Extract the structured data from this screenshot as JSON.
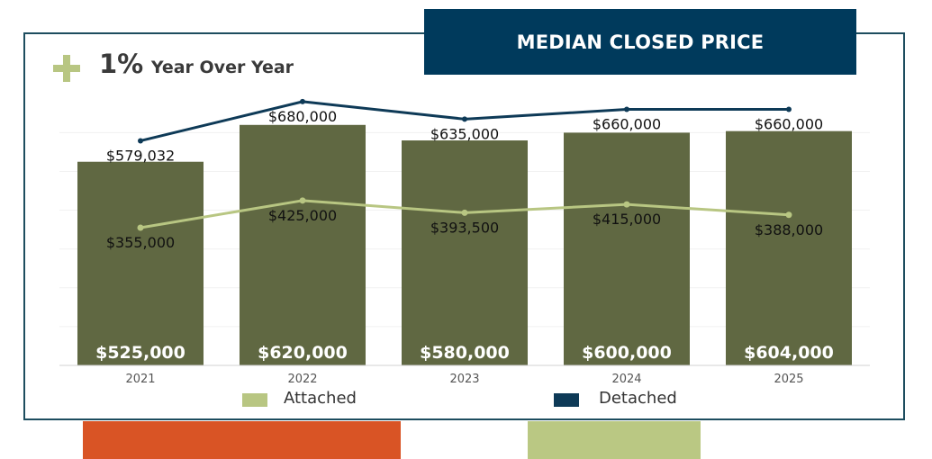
{
  "header": {
    "title": "MEDIAN CLOSED PRICE",
    "change_value": "1%",
    "change_label": "Year Over Year"
  },
  "colors": {
    "bar": "#606842",
    "attached": "#b8c682",
    "detached": "#0e3a57",
    "banner": "#003a5c",
    "accent_orange": "#d95425",
    "accent_green": "#bac883"
  },
  "icons": {
    "change": "plus-icon"
  },
  "chart_data": {
    "type": "bar",
    "categories": [
      "2021",
      "2022",
      "2023",
      "2024",
      "2025"
    ],
    "values": [
      525000,
      620000,
      580000,
      600000,
      604000
    ],
    "value_labels": [
      "$525,000",
      "$620,000",
      "$580,000",
      "$600,000",
      "$604,000"
    ],
    "ylim": [
      0,
      710000
    ],
    "grid": true,
    "legend_position": "bottom",
    "series": [
      {
        "name": "Attached",
        "type": "line",
        "values": [
          355000,
          425000,
          393500,
          415000,
          388000
        ],
        "labels": [
          "$355,000",
          "$425,000",
          "$393,500",
          "$415,000",
          "$388,000"
        ]
      },
      {
        "name": "Detached",
        "type": "line",
        "values": [
          579032,
          680000,
          635000,
          660000,
          660000
        ],
        "labels": [
          "$579,032",
          "$680,000",
          "$635,000",
          "$660,000",
          "$660,000"
        ]
      }
    ]
  }
}
